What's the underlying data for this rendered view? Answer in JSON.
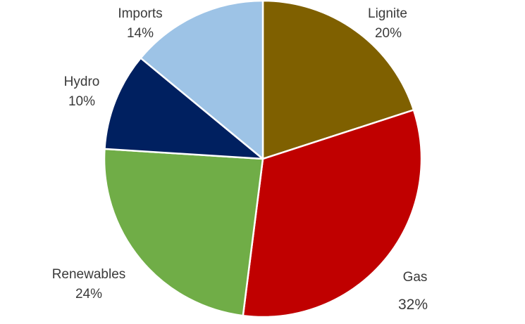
{
  "chart_data": {
    "type": "pie",
    "start_angle_deg": 0,
    "direction": "clockwise",
    "slice_border": "#ffffff",
    "slices": [
      {
        "label": "Lignite",
        "value": 20,
        "value_label": "20%",
        "color": "#7f6000"
      },
      {
        "label": "Gas",
        "value": 32,
        "value_label": "32%",
        "color": "#c00000"
      },
      {
        "label": "Renewables",
        "value": 24,
        "value_label": "24%",
        "color": "#70ad47"
      },
      {
        "label": "Hydro",
        "value": 10,
        "value_label": "10%",
        "color": "#002060"
      },
      {
        "label": "Imports",
        "value": 14,
        "value_label": "14%",
        "color": "#9dc3e6"
      }
    ]
  }
}
